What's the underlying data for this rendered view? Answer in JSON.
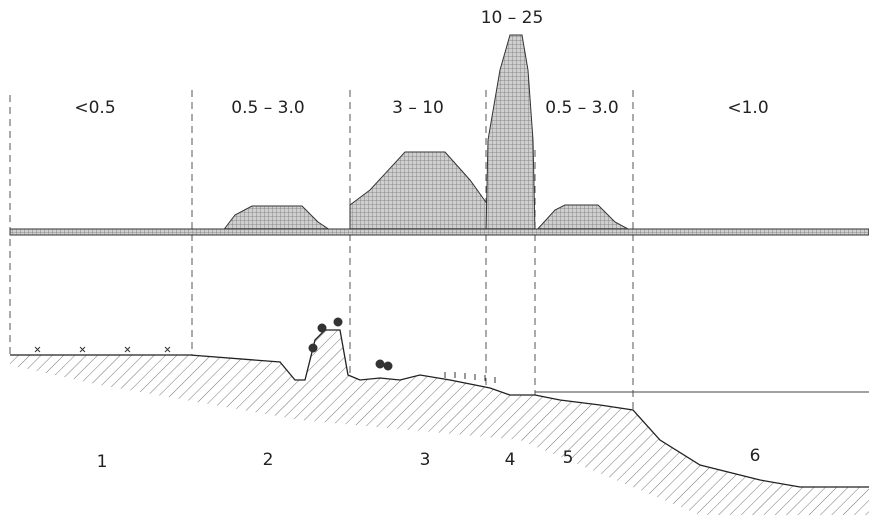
{
  "zones": [
    {
      "range": "<0.5",
      "number": 1
    },
    {
      "range": "0.5  –  3.0",
      "number": 2
    },
    {
      "range": "3 – 10",
      "number": 3
    },
    {
      "range": "10 – 25",
      "number": 4
    },
    {
      "range": "0.5 – 3.0",
      "number": 5
    },
    {
      "range": "<1.0",
      "number": 6
    }
  ]
}
